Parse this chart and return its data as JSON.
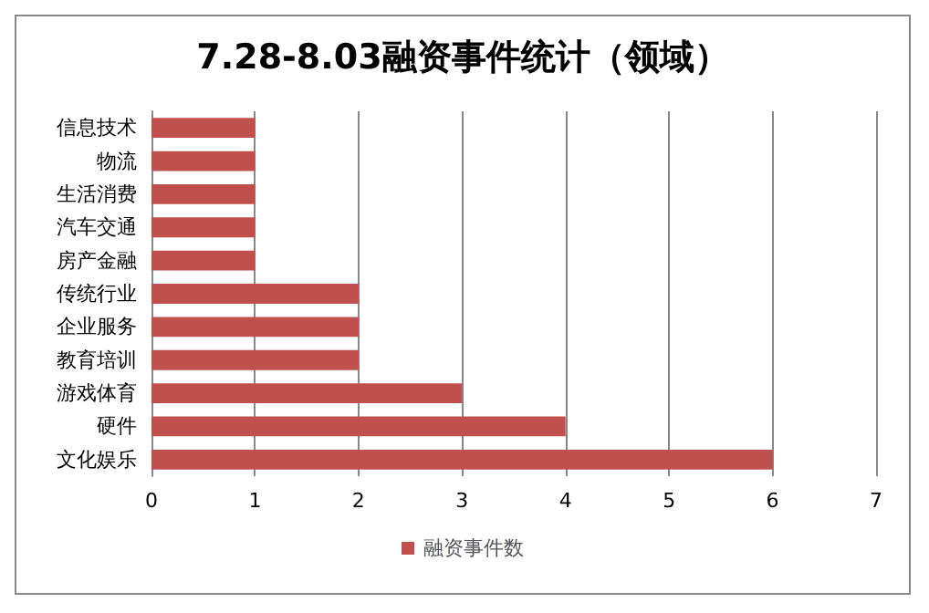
{
  "chart_data": {
    "type": "bar",
    "title": "7.28-8.03融资事件统计（领域）",
    "orientation": "horizontal",
    "categories": [
      "信息技术",
      "物流",
      "生活消费",
      "汽车交通",
      "房产金融",
      "传统行业",
      "企业服务",
      "教育培训",
      "游戏体育",
      "硬件",
      "文化娱乐"
    ],
    "series": [
      {
        "name": "融资事件数",
        "color": "#c0504d",
        "values": [
          1,
          1,
          1,
          1,
          1,
          2,
          2,
          2,
          3,
          4,
          6
        ]
      }
    ],
    "xlim": [
      0,
      7
    ],
    "xticks": [
      0,
      1,
      2,
      3,
      4,
      5,
      6,
      7
    ],
    "grid": "x",
    "legend": "bottom"
  }
}
